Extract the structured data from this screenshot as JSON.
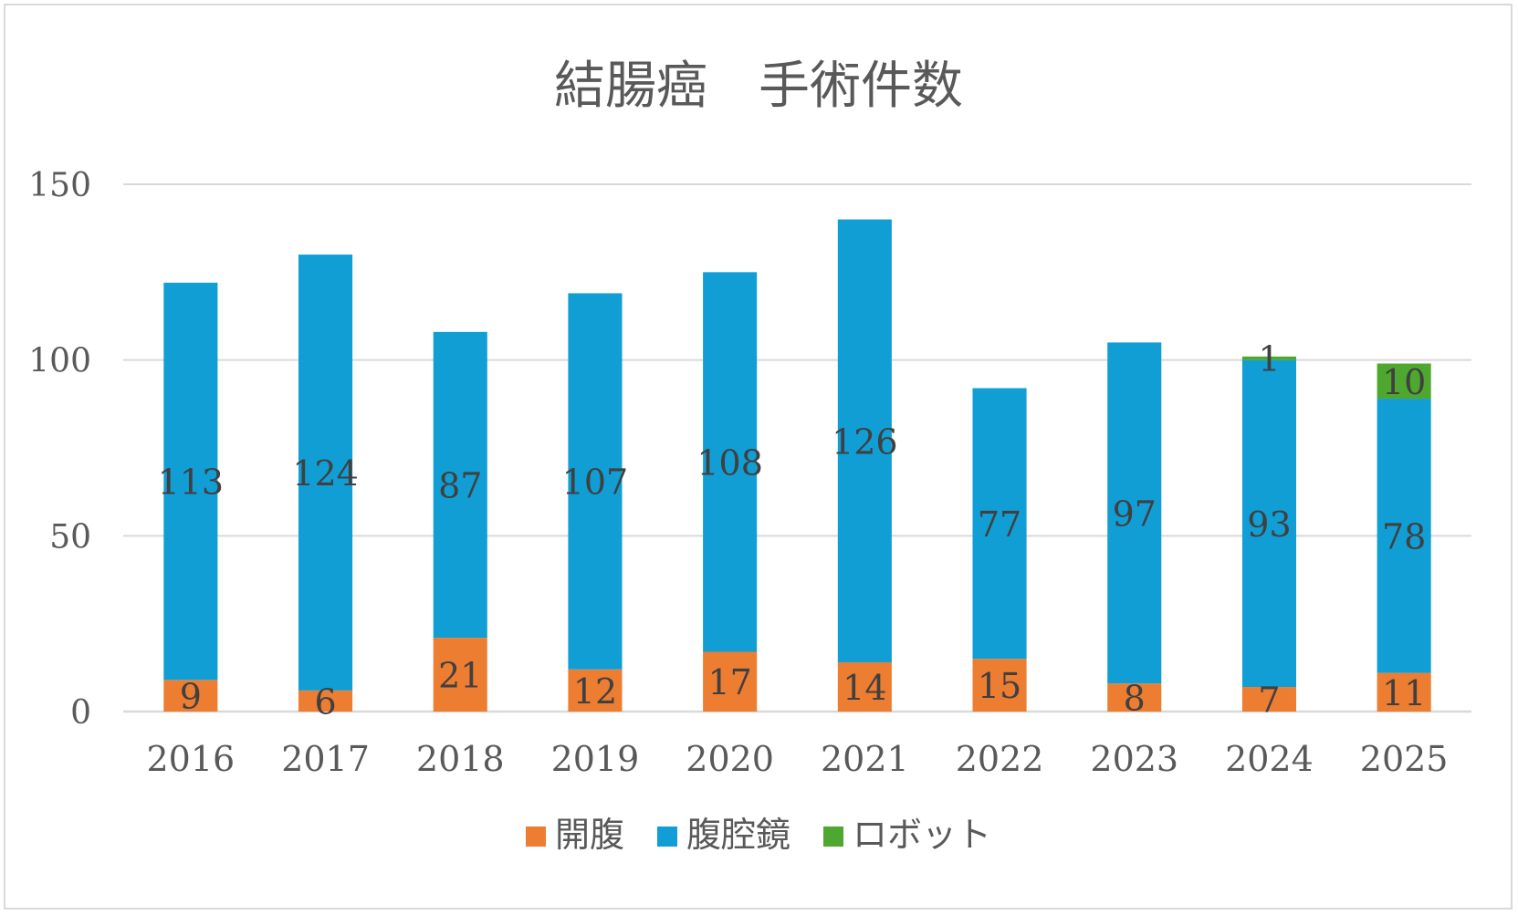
{
  "chart_data": {
    "type": "bar",
    "stacked": true,
    "title": "結腸癌　手術件数",
    "categories": [
      "2016",
      "2017",
      "2018",
      "2019",
      "2020",
      "2021",
      "2022",
      "2023",
      "2024",
      "2025"
    ],
    "series": [
      {
        "name": "開腹",
        "color": "#ed7d31",
        "values": [
          9,
          6,
          21,
          12,
          17,
          14,
          15,
          8,
          7,
          11
        ]
      },
      {
        "name": "腹腔鏡",
        "color": "#119ed4",
        "values": [
          113,
          124,
          87,
          107,
          108,
          126,
          77,
          97,
          93,
          78
        ]
      },
      {
        "name": "ロボット",
        "color": "#4ea72e",
        "values": [
          null,
          null,
          null,
          null,
          null,
          null,
          null,
          null,
          1,
          10
        ]
      }
    ],
    "ylim": [
      0,
      150
    ],
    "yticks": [
      0,
      50,
      100,
      150
    ],
    "grid": true,
    "legend": "bottom"
  }
}
